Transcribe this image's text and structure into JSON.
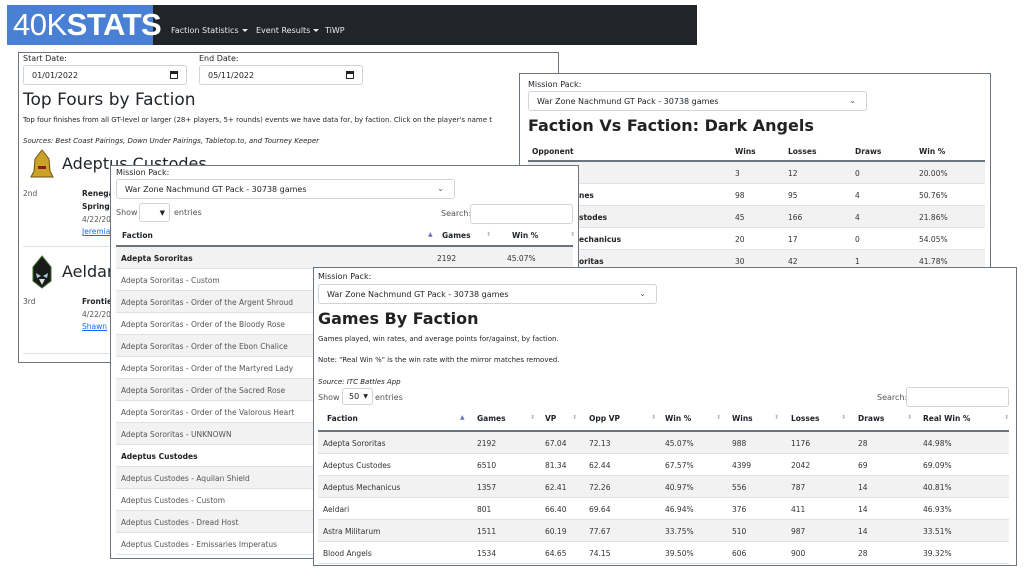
{
  "navbar": {
    "logo_light": "40K",
    "logo_bold": "STATS",
    "items": [
      {
        "label": "Faction Statistics",
        "dropdown": true
      },
      {
        "label": "Event Results",
        "dropdown": true
      },
      {
        "label": "TiWP",
        "dropdown": false
      }
    ],
    "logo_color": "#4a80d4",
    "bg_color": "#212529"
  },
  "top_fours": {
    "start_label": "Start Date:",
    "start_value": "01/01/2022",
    "end_label": "End Date:",
    "end_value": "05/11/2022",
    "title": "Top Fours by Faction",
    "description": "Top four finishes from all GT-level or larger (28+ players, 5+ rounds) events we have data for, by faction. Click on the player's name t",
    "sources": "Sources: Best Coast Pairings, Down Under Pairings, Tabletop.to, and Tourney Keeper",
    "factions": [
      {
        "name": "Adeptus Custodes",
        "icon": "custodes-helmet-icon",
        "place": "2nd",
        "event_line1": "Renega",
        "event_line2": "Spring",
        "date": "4/22/20",
        "player": "Jeremia"
      },
      {
        "name": "Aeldari",
        "icon": "aeldari-helmet-icon",
        "place": "3rd",
        "event_line1": "Frontie",
        "event_line2": "",
        "date": "4/22/20",
        "player": "Shawn"
      }
    ]
  },
  "faction_vs_faction": {
    "mission_label": "Mission Pack:",
    "mission_value": "War Zone Nachmund GT Pack - 30738 games",
    "title": "Faction Vs Faction: Dark Angels",
    "columns": [
      "Opponent",
      "Wins",
      "Losses",
      "Draws",
      "Win %"
    ],
    "rows": [
      [
        "",
        "3",
        "12",
        "0",
        "20.00%"
      ],
      [
        "nes",
        "98",
        "95",
        "4",
        "50.76%"
      ],
      [
        "stodes",
        "45",
        "166",
        "4",
        "21.86%"
      ],
      [
        "echanicus",
        "20",
        "17",
        "0",
        "54.05%"
      ],
      [
        "oritas",
        "30",
        "42",
        "1",
        "41.78%"
      ]
    ]
  },
  "subfaction_list": {
    "mission_label": "Mission Pack:",
    "mission_value": "War Zone Nachmund GT Pack - 30738 games",
    "show_label": "Show",
    "show_value": "",
    "entries_label": "entries",
    "search_label": "Search:",
    "search_value": "",
    "columns": [
      "Faction",
      "Games",
      "Win %"
    ],
    "rows": [
      {
        "name": "Adepta Sororitas",
        "games": "2192",
        "win": "45.07%",
        "bold": true
      },
      {
        "name": "Adepta Sororitas - Custom"
      },
      {
        "name": "Adepta Sororitas - Order of the Argent Shroud"
      },
      {
        "name": "Adepta Sororitas - Order of the Bloody Rose"
      },
      {
        "name": "Adepta Sororitas - Order of the Ebon Chalice"
      },
      {
        "name": "Adepta Sororitas - Order of the Martyred Lady"
      },
      {
        "name": "Adepta Sororitas - Order of the Sacred Rose"
      },
      {
        "name": "Adepta Sororitas - Order of the Valorous Heart"
      },
      {
        "name": "Adepta Sororitas - UNKNOWN"
      },
      {
        "name": "Adeptus Custodes",
        "bold": true
      },
      {
        "name": "Adeptus Custodes - Aquilan Shield"
      },
      {
        "name": "Adeptus Custodes - Custom"
      },
      {
        "name": "Adeptus Custodes - Dread Host"
      },
      {
        "name": "Adeptus Custodes - Emissaries Imperatus"
      }
    ]
  },
  "games_by_faction": {
    "mission_label": "Mission Pack:",
    "mission_value": "War Zone Nachmund GT Pack - 30738 games",
    "title": "Games By Faction",
    "description": "Games played, win rates, and average points for/against, by faction.",
    "note": "Note: \"Real Win %\" is the win rate with the mirror matches removed.",
    "source": "Source: ITC Battles App",
    "show_label": "Show",
    "show_value": "50",
    "entries_label": "entries",
    "search_label": "Search:",
    "search_value": "",
    "columns": [
      "Faction",
      "Games",
      "VP",
      "Opp VP",
      "Win %",
      "Wins",
      "Losses",
      "Draws",
      "Real Win %"
    ],
    "rows": [
      [
        "Adepta Sororitas",
        "2192",
        "67.04",
        "72.13",
        "45.07%",
        "988",
        "1176",
        "28",
        "44.98%"
      ],
      [
        "Adeptus Custodes",
        "6510",
        "81.34",
        "62.44",
        "67.57%",
        "4399",
        "2042",
        "69",
        "69.09%"
      ],
      [
        "Adeptus Mechanicus",
        "1357",
        "62.41",
        "72.26",
        "40.97%",
        "556",
        "787",
        "14",
        "40.81%"
      ],
      [
        "Aeldari",
        "801",
        "66.40",
        "69.64",
        "46.94%",
        "376",
        "411",
        "14",
        "46.93%"
      ],
      [
        "Astra Militarum",
        "1511",
        "60.19",
        "77.67",
        "33.75%",
        "510",
        "987",
        "14",
        "33.51%"
      ],
      [
        "Blood Angels",
        "1534",
        "64.65",
        "74.15",
        "39.50%",
        "606",
        "900",
        "28",
        "39.32%"
      ]
    ]
  }
}
